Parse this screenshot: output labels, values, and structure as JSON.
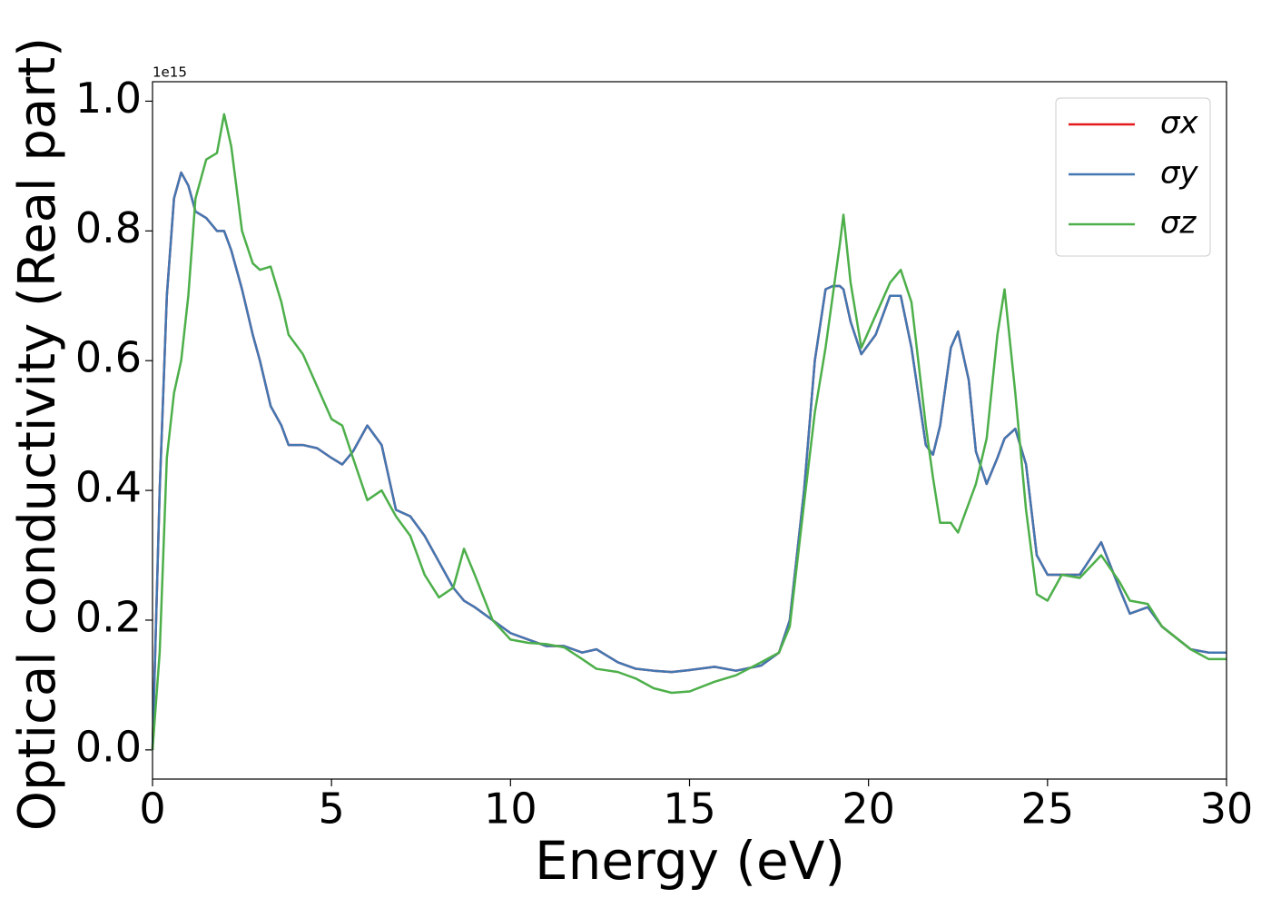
{
  "chart_data": {
    "type": "line",
    "x_label": "Energy (eV)",
    "y_label": "Optical conductivity (Real part)",
    "y_offset_label": "1e15",
    "xlim": [
      0,
      30
    ],
    "xticks": [
      0,
      5,
      10,
      15,
      20,
      25,
      30
    ],
    "ylim": [
      -0.045,
      1.03
    ],
    "yticks": [
      {
        "value": 0,
        "label": "0.0"
      },
      {
        "value": 0.2,
        "label": "0.2"
      },
      {
        "value": 0.4,
        "label": "0.4"
      },
      {
        "value": 0.6,
        "label": "0.6"
      },
      {
        "value": 0.8,
        "label": "0.8"
      },
      {
        "value": 1.0,
        "label": "1.0"
      }
    ],
    "legend": "upper right",
    "grid": false,
    "x": [
      0,
      0.2,
      0.4,
      0.6,
      0.8,
      1.0,
      1.2,
      1.5,
      1.8,
      2.0,
      2.2,
      2.5,
      2.8,
      3.0,
      3.3,
      3.6,
      3.8,
      4.2,
      4.6,
      5.0,
      5.3,
      5.6,
      6.0,
      6.4,
      6.8,
      7.2,
      7.6,
      8.0,
      8.4,
      8.7,
      9.0,
      9.5,
      10.0,
      10.5,
      11.0,
      11.5,
      12.0,
      12.4,
      13.0,
      13.5,
      14.0,
      14.5,
      15.0,
      15.7,
      16.3,
      17.0,
      17.5,
      17.8,
      18.2,
      18.5,
      18.8,
      19.0,
      19.2,
      19.3,
      19.5,
      19.8,
      20.2,
      20.6,
      20.9,
      21.2,
      21.6,
      21.8,
      22.0,
      22.3,
      22.5,
      22.8,
      23.0,
      23.3,
      23.6,
      23.8,
      24.1,
      24.4,
      24.7,
      25.0,
      25.4,
      25.9,
      26.5,
      27.0,
      27.3,
      27.8,
      28.2,
      29.0,
      29.5,
      30.0
    ],
    "series": [
      {
        "name": "σx",
        "color": "#e41a1c",
        "values": [
          0,
          0.4,
          0.7,
          0.85,
          0.89,
          0.87,
          0.83,
          0.82,
          0.8,
          0.8,
          0.77,
          0.71,
          0.64,
          0.6,
          0.53,
          0.5,
          0.47,
          0.47,
          0.465,
          0.45,
          0.44,
          0.46,
          0.5,
          0.47,
          0.37,
          0.36,
          0.33,
          0.29,
          0.25,
          0.23,
          0.22,
          0.2,
          0.18,
          0.17,
          0.16,
          0.16,
          0.15,
          0.155,
          0.135,
          0.125,
          0.122,
          0.12,
          0.123,
          0.128,
          0.122,
          0.13,
          0.15,
          0.2,
          0.4,
          0.6,
          0.71,
          0.715,
          0.715,
          0.71,
          0.66,
          0.61,
          0.64,
          0.7,
          0.7,
          0.62,
          0.47,
          0.455,
          0.5,
          0.62,
          0.645,
          0.57,
          0.46,
          0.41,
          0.45,
          0.48,
          0.495,
          0.44,
          0.3,
          0.27,
          0.27,
          0.27,
          0.32,
          0.25,
          0.21,
          0.22,
          0.19,
          0.155,
          0.15,
          0.15
        ]
      },
      {
        "name": "σy",
        "color": "#4277b2",
        "values": [
          0,
          0.4,
          0.7,
          0.85,
          0.89,
          0.87,
          0.83,
          0.82,
          0.8,
          0.8,
          0.77,
          0.71,
          0.64,
          0.6,
          0.53,
          0.5,
          0.47,
          0.47,
          0.465,
          0.45,
          0.44,
          0.46,
          0.5,
          0.47,
          0.37,
          0.36,
          0.33,
          0.29,
          0.25,
          0.23,
          0.22,
          0.2,
          0.18,
          0.17,
          0.16,
          0.16,
          0.15,
          0.155,
          0.135,
          0.125,
          0.122,
          0.12,
          0.123,
          0.128,
          0.122,
          0.13,
          0.15,
          0.2,
          0.4,
          0.6,
          0.71,
          0.715,
          0.715,
          0.71,
          0.66,
          0.61,
          0.64,
          0.7,
          0.7,
          0.62,
          0.47,
          0.455,
          0.5,
          0.62,
          0.645,
          0.57,
          0.46,
          0.41,
          0.45,
          0.48,
          0.495,
          0.44,
          0.3,
          0.27,
          0.27,
          0.27,
          0.32,
          0.25,
          0.21,
          0.22,
          0.19,
          0.155,
          0.15,
          0.15
        ]
      },
      {
        "name": "σz",
        "color": "#4daf4a",
        "values": [
          0,
          0.15,
          0.45,
          0.55,
          0.6,
          0.7,
          0.85,
          0.91,
          0.92,
          0.98,
          0.93,
          0.8,
          0.75,
          0.74,
          0.745,
          0.69,
          0.64,
          0.61,
          0.56,
          0.51,
          0.5,
          0.45,
          0.385,
          0.4,
          0.36,
          0.33,
          0.27,
          0.235,
          0.25,
          0.31,
          0.27,
          0.2,
          0.17,
          0.165,
          0.163,
          0.158,
          0.14,
          0.125,
          0.12,
          0.11,
          0.095,
          0.088,
          0.09,
          0.105,
          0.115,
          0.135,
          0.15,
          0.19,
          0.38,
          0.52,
          0.62,
          0.7,
          0.78,
          0.825,
          0.72,
          0.62,
          0.67,
          0.72,
          0.74,
          0.69,
          0.5,
          0.42,
          0.35,
          0.35,
          0.335,
          0.38,
          0.41,
          0.48,
          0.64,
          0.71,
          0.55,
          0.37,
          0.24,
          0.23,
          0.27,
          0.265,
          0.3,
          0.26,
          0.23,
          0.225,
          0.19,
          0.155,
          0.14,
          0.14
        ]
      }
    ]
  }
}
